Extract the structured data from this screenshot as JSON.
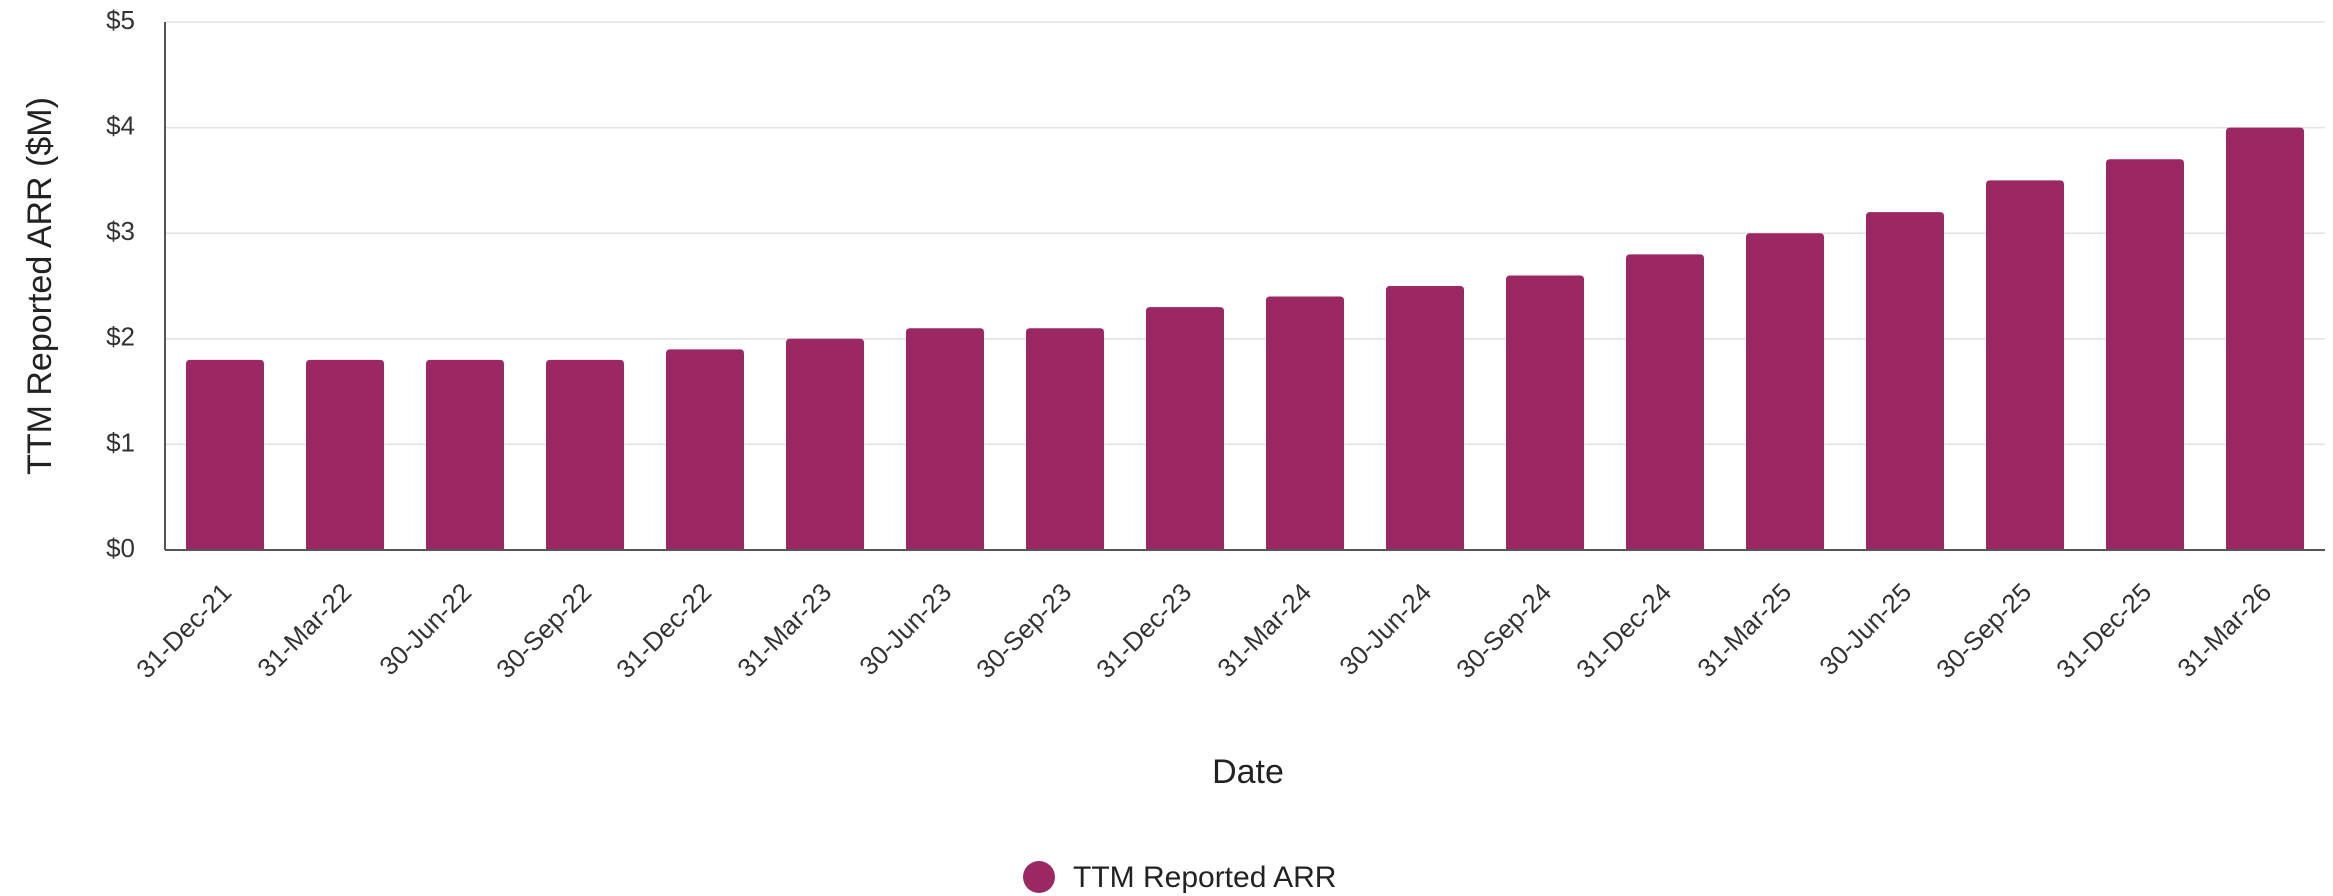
{
  "chart_data": {
    "type": "bar",
    "categories": [
      "31-Dec-21",
      "31-Mar-22",
      "30-Jun-22",
      "30-Sep-22",
      "31-Dec-22",
      "31-Mar-23",
      "30-Jun-23",
      "30-Sep-23",
      "31-Dec-23",
      "31-Mar-24",
      "30-Jun-24",
      "30-Sep-24",
      "31-Dec-24",
      "31-Mar-25",
      "30-Jun-25",
      "30-Sep-25",
      "31-Dec-25",
      "31-Mar-26"
    ],
    "series": [
      {
        "name": "TTM Reported ARR",
        "color": "#9B2763",
        "values": [
          1.8,
          1.8,
          1.8,
          1.8,
          1.9,
          2.0,
          2.1,
          2.1,
          2.3,
          2.4,
          2.5,
          2.6,
          2.8,
          3.0,
          3.2,
          3.5,
          3.7,
          4.0
        ]
      }
    ],
    "xlabel": "Date",
    "ylabel": "TTM Reported ARR ($M)",
    "ylim": [
      0,
      5
    ],
    "yticks": [
      0,
      1,
      2,
      3,
      4,
      5
    ],
    "ytick_labels": [
      "$0",
      "$1",
      "$2",
      "$3",
      "$4",
      "$5"
    ],
    "grid": true,
    "legend_position": "bottom-center"
  }
}
